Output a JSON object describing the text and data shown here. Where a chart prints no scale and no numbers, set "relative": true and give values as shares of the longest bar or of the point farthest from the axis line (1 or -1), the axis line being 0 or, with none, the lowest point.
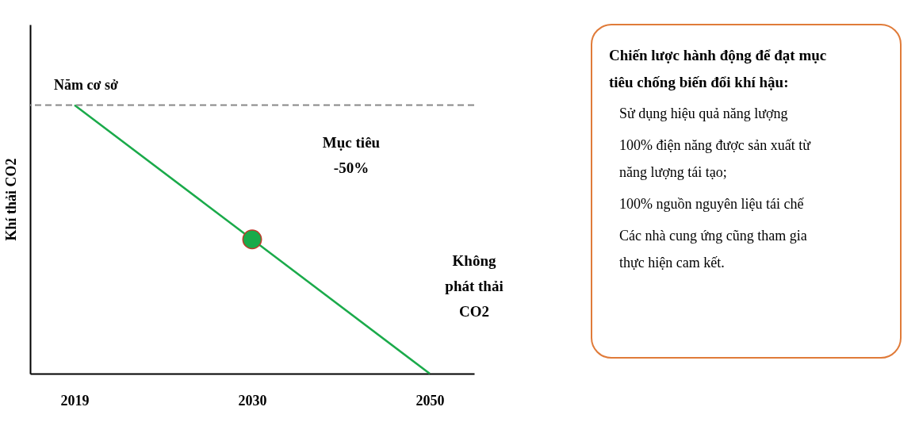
{
  "chart_data": [
    {
      "type": "line",
      "relative": true,
      "ylabel": "Khí thải CO2",
      "categories": [
        "2019",
        "2030",
        "2050"
      ],
      "series": [
        {
          "type": "line",
          "color": "#1aaa4a",
          "values": [
            1,
            0.5,
            0
          ]
        },
        {
          "type": "scatter",
          "color": "#1aaa4a",
          "values": [
            null,
            0.5,
            null
          ]
        }
      ],
      "ref_lines": [
        {
          "axis": "y",
          "value": 1,
          "label": "Năm cơ sở",
          "color": "#888888",
          "line_style": "dashed"
        }
      ],
      "annotations": [
        "Mục tiêu -50%",
        "Không phát thải CO2"
      ]
    },
    {
      "type": "other",
      "title": "Chiến lược hành động để đạt mục tiêu chống biến đổi khí hậu:",
      "annotations": [
        "Sử dụng hiệu quả năng lượng",
        "100% điện năng được sản xuất từ năng lượng tái tạo;",
        "100% nguồn nguyên liệu tái chế",
        "Các nhà cung ứng cũng tham gia thực hiện cam kết."
      ]
    }
  ]
}
